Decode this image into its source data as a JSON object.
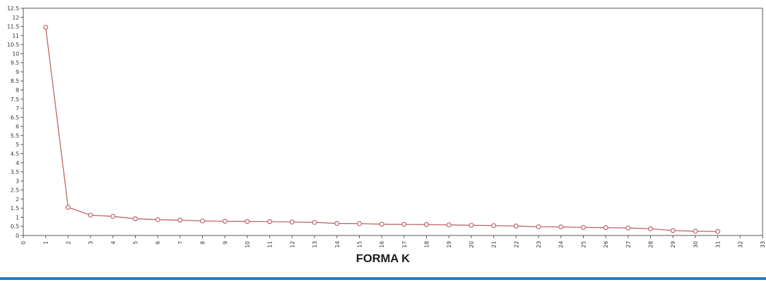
{
  "caption": "FORMA K",
  "colors": {
    "line": "#b8555a",
    "axis": "#555555",
    "rule": "#1f7cc4"
  },
  "chart_data": {
    "type": "line",
    "title": "",
    "xlabel": "",
    "ylabel": "",
    "xlim": [
      0,
      33
    ],
    "ylim": [
      0,
      12.5
    ],
    "grid": false,
    "x_ticks": [
      0,
      1,
      2,
      3,
      4,
      5,
      6,
      7,
      8,
      9,
      10,
      11,
      12,
      13,
      14,
      15,
      16,
      17,
      18,
      19,
      20,
      21,
      22,
      23,
      24,
      25,
      26,
      27,
      28,
      29,
      30,
      31,
      32,
      33
    ],
    "y_ticks": [
      0,
      0.5,
      1,
      1.5,
      2,
      2.5,
      3,
      3.5,
      4,
      4.5,
      5,
      5.5,
      6,
      6.5,
      7,
      7.5,
      8,
      8.5,
      9,
      9.5,
      10,
      10.5,
      11,
      11.5,
      12,
      12.5
    ],
    "series": [
      {
        "x": [
          1,
          2,
          3,
          4,
          5,
          6,
          7,
          8,
          9,
          10,
          11,
          12,
          13,
          14,
          15,
          16,
          17,
          18,
          19,
          20,
          21,
          22,
          23,
          24,
          25,
          26,
          27,
          28,
          29,
          30,
          31
        ],
        "values": [
          11.45,
          1.55,
          1.12,
          1.05,
          0.92,
          0.87,
          0.84,
          0.8,
          0.78,
          0.77,
          0.76,
          0.74,
          0.72,
          0.66,
          0.65,
          0.62,
          0.61,
          0.6,
          0.58,
          0.56,
          0.54,
          0.52,
          0.48,
          0.47,
          0.44,
          0.43,
          0.41,
          0.37,
          0.27,
          0.23,
          0.22
        ]
      }
    ]
  }
}
